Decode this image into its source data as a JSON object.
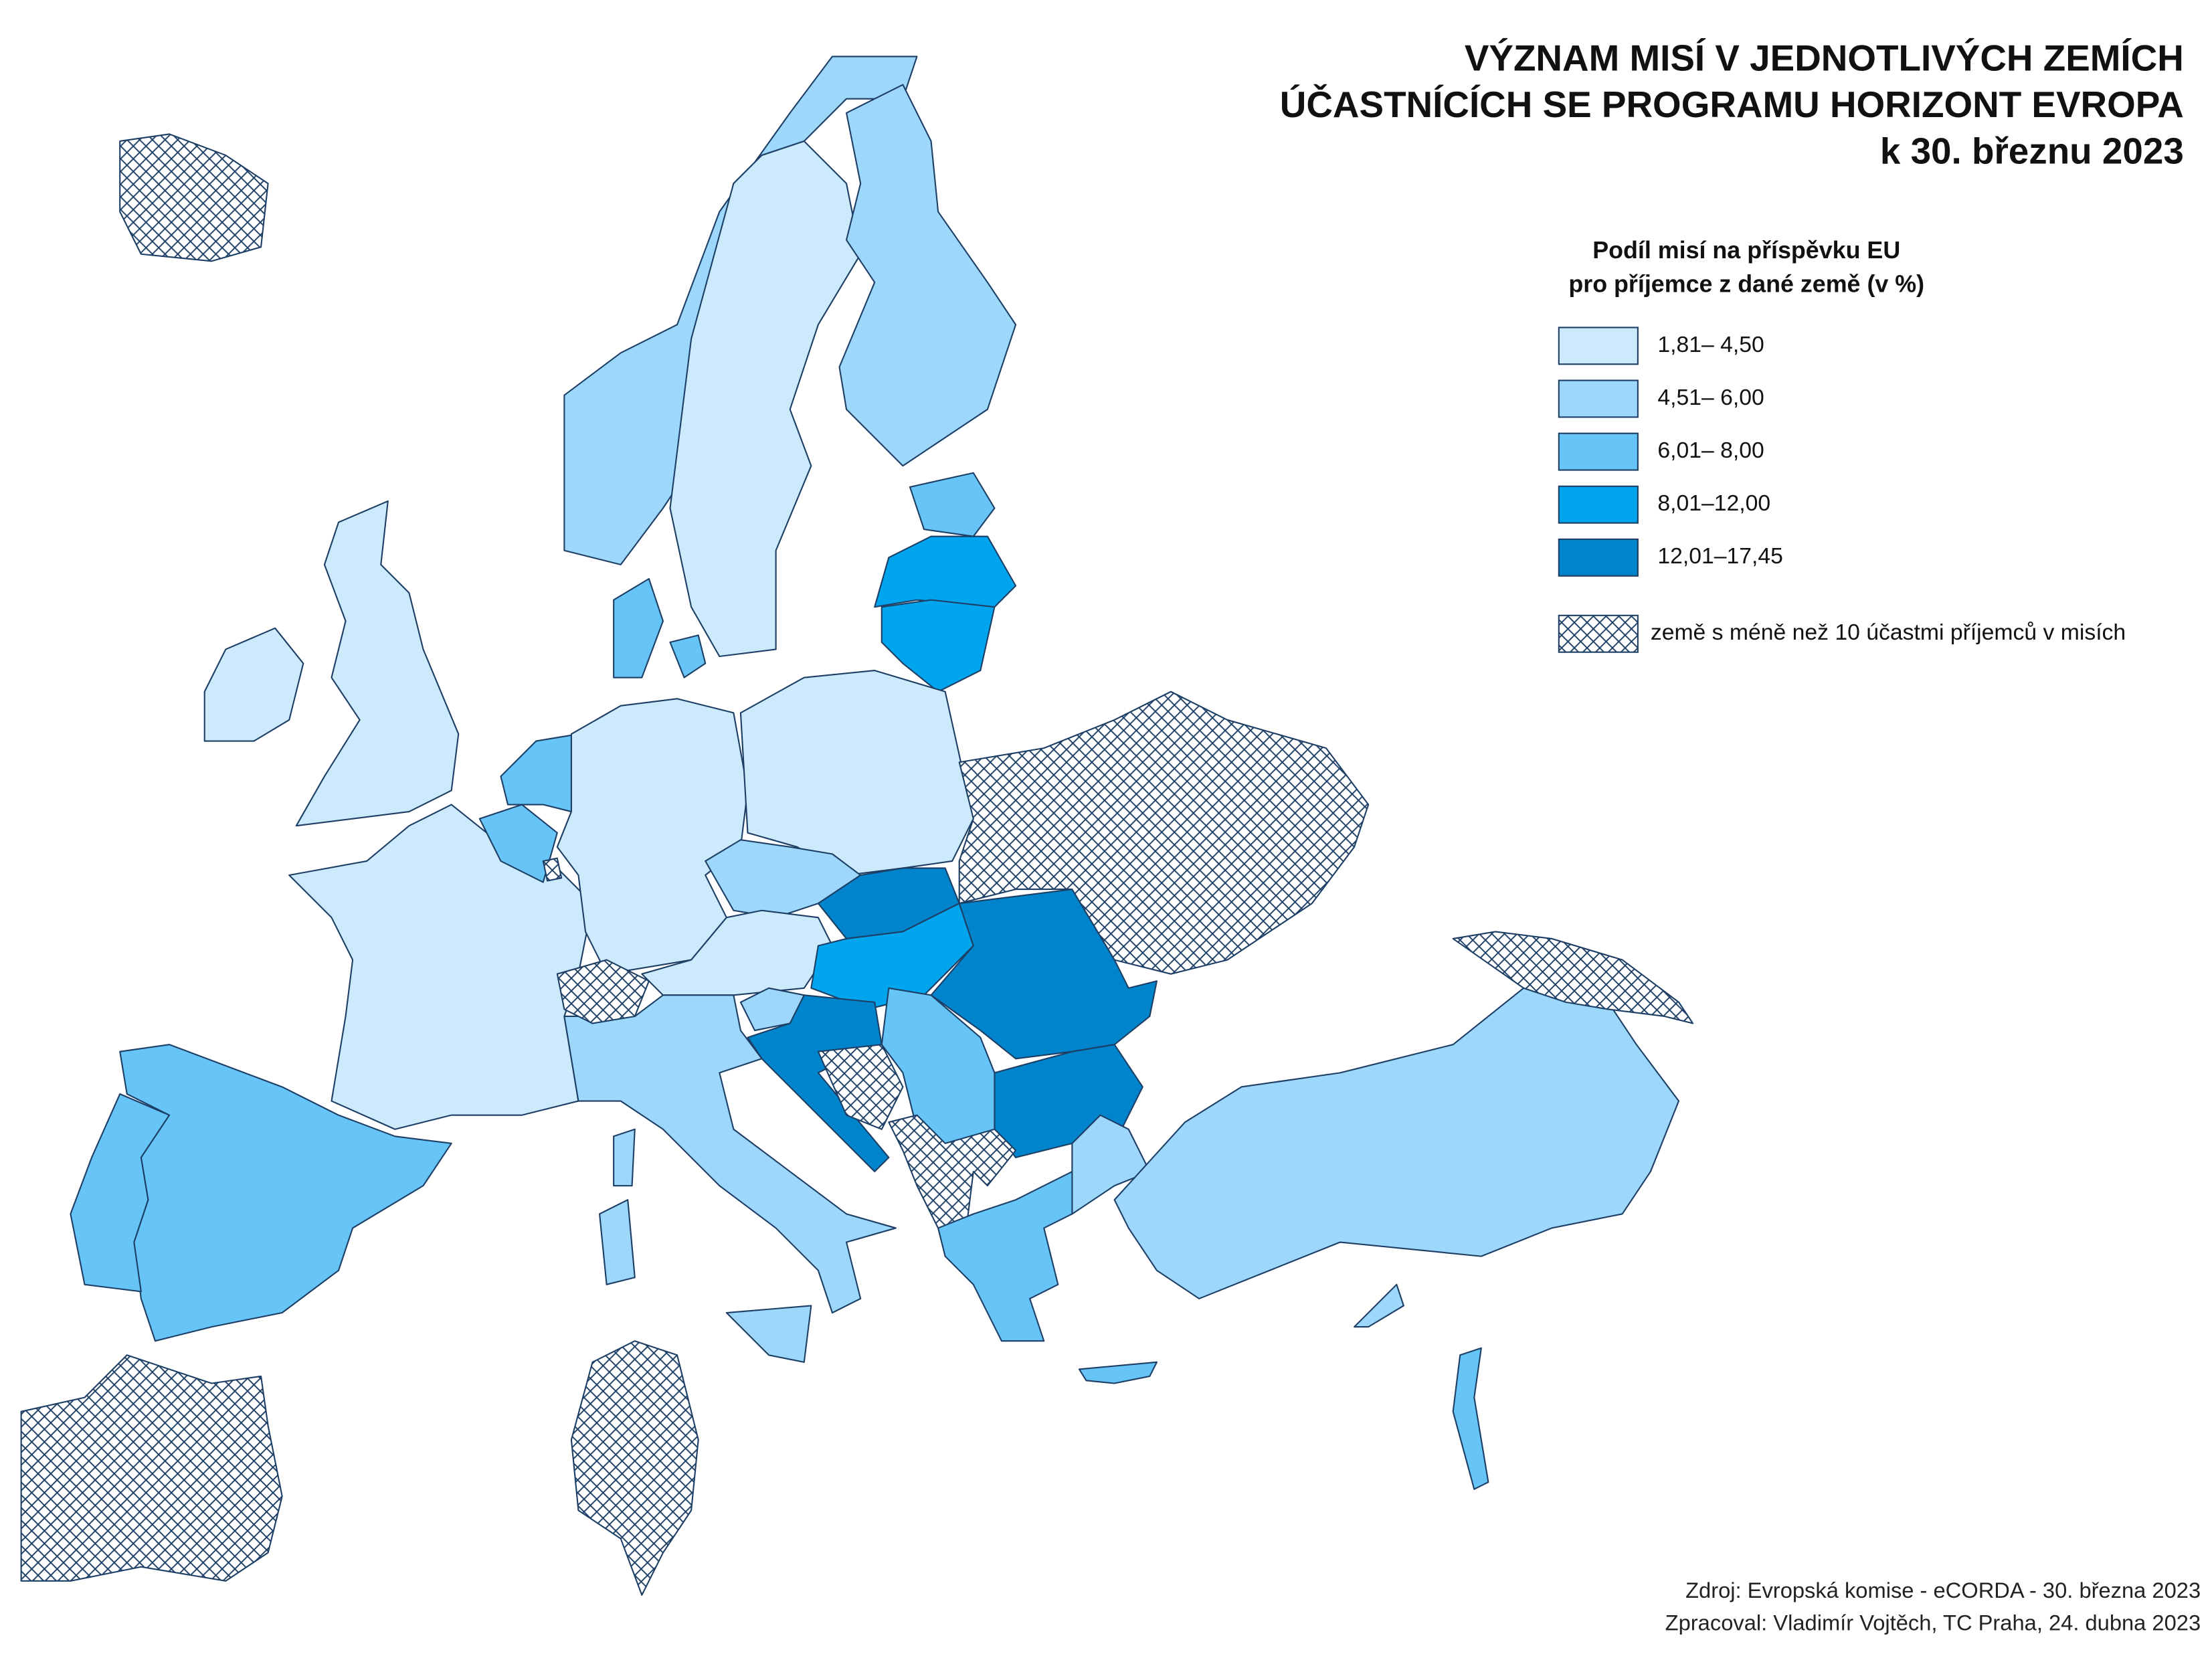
{
  "header": {
    "title_lines": [
      "VÝZNAM MISÍ V JEDNOTLIVÝCH ZEMÍCH",
      "ÚČASTNÍCÍCH SE PROGRAMU HORIZONT EVROPA",
      "k 30. březnu 2023"
    ]
  },
  "legend": {
    "title_lines": [
      "Podíl misí na příspěvku EU",
      "pro příjemce z dané země (v %)"
    ],
    "classes": [
      {
        "label": "1,81–  4,50",
        "color": "#cdeafc"
      },
      {
        "label": "4,51–  6,00",
        "color": "#9dd8fb"
      },
      {
        "label": "6,01–  8,00",
        "color": "#66c4f7"
      },
      {
        "label": "8,01–12,00",
        "color": "#00a5ee"
      },
      {
        "label": "12,01–17,45",
        "color": "#0084cb"
      }
    ],
    "hatch_label": "země s méně než 10 účastmi příjemců v misích"
  },
  "footer": {
    "source_lines": [
      "Zdroj: Evropská komise - eCORDA - 30. března 2023",
      "Zpracoval: Vladimír Vojtěch, TC Praha, 24. dubna 2023"
    ]
  }
}
